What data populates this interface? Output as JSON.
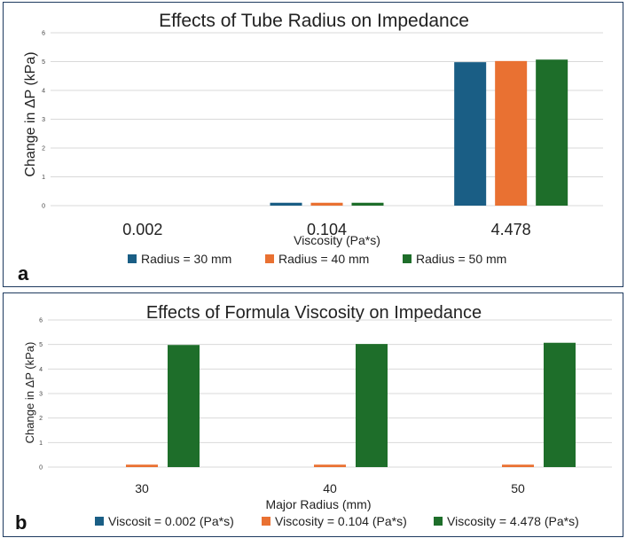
{
  "chart_data": [
    {
      "type": "bar",
      "title": "Effects of Tube Radius on Impedance",
      "xlabel": "Viscosity (Pa*s)",
      "ylabel": "Change in ΔP (kPa)",
      "ylim": [
        0,
        6
      ],
      "yticks": [
        "0",
        "1",
        "2",
        "3",
        "4",
        "5",
        "6"
      ],
      "categories": [
        "0.002",
        "0.104",
        "4.478"
      ],
      "series": [
        {
          "name": "Radius = 30 mm",
          "color": "#1a5e85",
          "values": [
            0.0,
            0.1,
            4.98
          ]
        },
        {
          "name": "Radius = 40 mm",
          "color": "#e97132",
          "values": [
            0.0,
            0.1,
            5.02
          ]
        },
        {
          "name": "Radius = 50 mm",
          "color": "#1e6e2a",
          "values": [
            0.0,
            0.1,
            5.07
          ]
        }
      ],
      "panel_label": "a",
      "grid": true,
      "legend": "bottom"
    },
    {
      "type": "bar",
      "title": "Effects of Formula Viscosity on Impedance",
      "xlabel": "Major Radius (mm)",
      "ylabel": "Change in ΔP (kPa)",
      "ylim": [
        0,
        6
      ],
      "yticks": [
        "0",
        "1",
        "2",
        "3",
        "4",
        "5",
        "6"
      ],
      "categories": [
        "30",
        "40",
        "50"
      ],
      "series": [
        {
          "name": "Viscosit = 0.002 (Pa*s)",
          "color": "#1a5e85",
          "values": [
            0.0,
            0.0,
            0.0
          ]
        },
        {
          "name": "Viscosity = 0.104 (Pa*s)",
          "color": "#e97132",
          "values": [
            0.1,
            0.1,
            0.1
          ]
        },
        {
          "name": "Viscosity = 4.478 (Pa*s)",
          "color": "#1e6e2a",
          "values": [
            4.98,
            5.02,
            5.07
          ]
        }
      ],
      "panel_label": "b",
      "grid": true,
      "legend": "bottom"
    }
  ]
}
